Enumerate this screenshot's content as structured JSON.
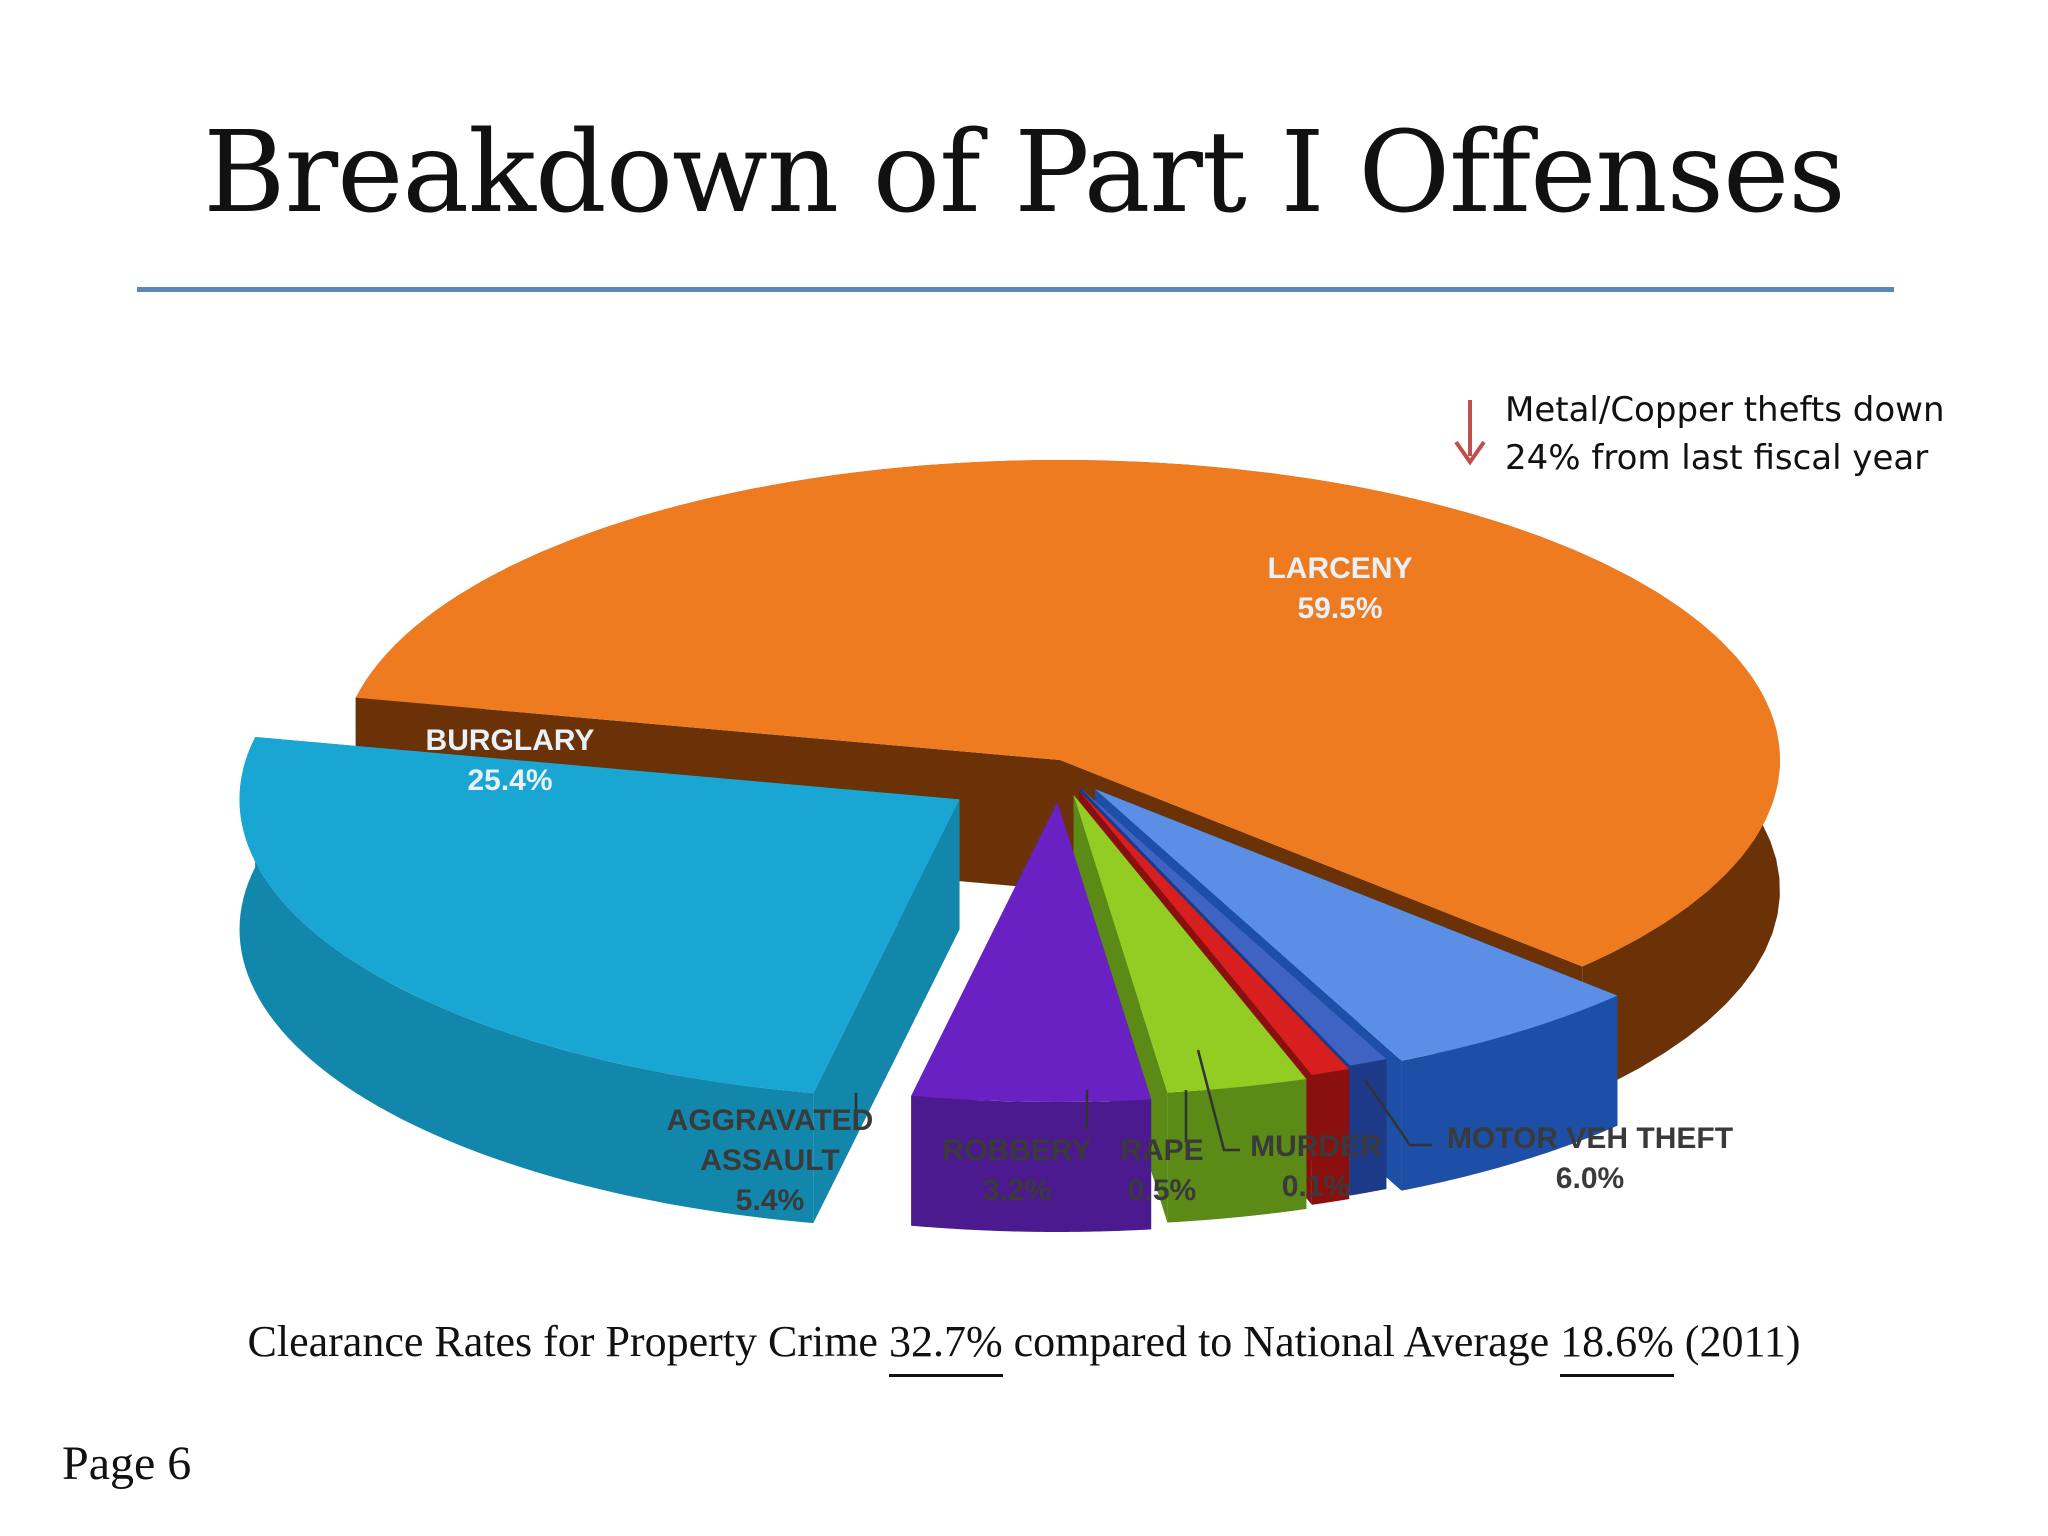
{
  "slide": {
    "title": "Breakdown of Part I Offenses",
    "note_line1": "Metal/Copper thefts down",
    "note_line2": "24% from last fiscal year",
    "footer_prefix": "Clearance Rates for Property Crime ",
    "footer_value1": "32.7%",
    "footer_middle": " compared to National Average ",
    "footer_value2": "18.6%",
    "footer_suffix": " (2011)",
    "page_label": "Page 6",
    "rule_color": "#5b86b8",
    "arrow_icon": "down-arrow-icon",
    "arrow_color": "#c0504d"
  },
  "chart_data": {
    "type": "pie",
    "title": "",
    "style": "3d-exploded",
    "slices": [
      {
        "label": "LARCENY",
        "value": 59.5,
        "value_label": "59.5%",
        "color": "#ee7b1f",
        "side_color": "#6b3208"
      },
      {
        "label": "MOTOR VEH THEFT",
        "value": 6.0,
        "value_label": "6.0%",
        "color": "#5b8fe6",
        "side_color": "#1d4fa6"
      },
      {
        "label": "MURDER",
        "value": 0.1,
        "value_label": "0.1%",
        "color": "#3e63c2",
        "side_color": "#1c3a87"
      },
      {
        "label": "RAPE",
        "value": 0.5,
        "value_label": "0.5%",
        "color": "#d81f1f",
        "side_color": "#8a1010"
      },
      {
        "label": "ROBBERY",
        "value": 3.2,
        "value_label": "3.2%",
        "color": "#93cc22",
        "side_color": "#5b8a16"
      },
      {
        "label": "AGGRAVATED ASSAULT",
        "label_lines": [
          "AGGRAVATED",
          "ASSAULT"
        ],
        "value": 5.4,
        "value_label": "5.4%",
        "color": "#6a21c4",
        "side_color": "#4a1a8e"
      },
      {
        "label": "BURGLARY",
        "value": 25.4,
        "value_label": "25.4%",
        "color": "#1aa6d2",
        "side_color": "#1286ab"
      }
    ]
  }
}
